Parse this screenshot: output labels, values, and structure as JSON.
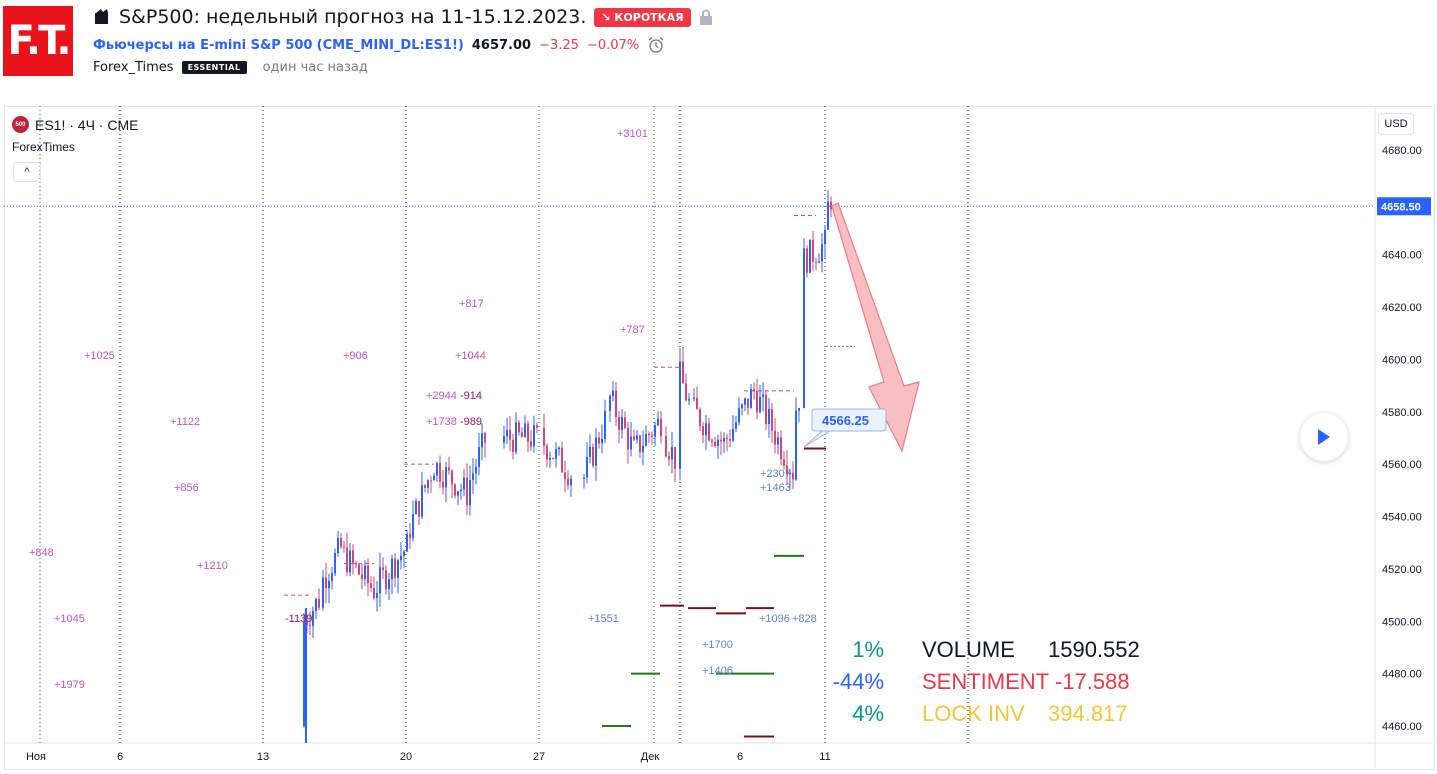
{
  "header": {
    "logo_text": "F.T.",
    "title": "S&P500: недельный прогноз на 11-15.12.2023.",
    "badge": "↘ КОРОТКАЯ",
    "symbol_name": "Фьючерсы на E-mini S&P 500",
    "symbol_code": "(CME_MINI_DL:ES1!)",
    "last_price": "4657.00",
    "change": "−3.25",
    "change_pct": "−0.07%",
    "author": "Forex_Times",
    "author_badge": "ESSENTIAL",
    "published": "один час назад"
  },
  "legend": {
    "symbol": "ES1! · 4Ч · CME",
    "symbol_icon": "500",
    "indicator": "ForexTimes",
    "collapse": "^"
  },
  "axis": {
    "currency": "USD",
    "current_price_label": "4658.50",
    "target_label": "4566.25"
  },
  "stats": {
    "rows": [
      {
        "pct": "1%",
        "label": "VOLUME",
        "value": "1590.552",
        "pct_color": "#089981",
        "label_color": "#131722",
        "value_color": "#131722"
      },
      {
        "pct": "-44%",
        "label": "SENTIMENT",
        "value": "-17.588",
        "pct_color": "#2962ff",
        "label_color": "#f23645",
        "value_color": "#f23645"
      },
      {
        "pct": "4%",
        "label": "LOCK INV",
        "value": "394.817",
        "pct_color": "#089981",
        "label_color": "#f5c533",
        "value_color": "#f5c533"
      }
    ]
  },
  "chart_data": {
    "type": "candlestick",
    "ylim": [
      4452,
      4688
    ],
    "y_ticks": [
      "4680.00",
      "4660.00",
      "4640.00",
      "4620.00",
      "4600.00",
      "4580.00",
      "4560.00",
      "4540.00",
      "4520.00",
      "4500.00",
      "4480.00",
      "4460.00"
    ],
    "x_ticks": [
      "Ноя",
      "6",
      "13",
      "20",
      "27",
      "Дек",
      "6",
      "11"
    ],
    "current_price": 4658.5,
    "forecast_target": 4566.25,
    "annotations": [
      {
        "text": "+3101"
      },
      {
        "text": "+817"
      },
      {
        "text": "+787"
      },
      {
        "text": "+1025"
      },
      {
        "text": "+906"
      },
      {
        "text": "+1044"
      },
      {
        "text": "+2944"
      },
      {
        "text": "-914"
      },
      {
        "text": "+1122"
      },
      {
        "text": "+1738"
      },
      {
        "text": "-989"
      },
      {
        "text": "+856"
      },
      {
        "text": "+2307"
      },
      {
        "text": "+1463"
      },
      {
        "text": "+848"
      },
      {
        "text": "+1210"
      },
      {
        "text": "+1045"
      },
      {
        "text": "-1139"
      },
      {
        "text": "+1551"
      },
      {
        "text": "+1096"
      },
      {
        "text": "+828"
      },
      {
        "text": "+1700"
      },
      {
        "text": "+1406"
      },
      {
        "text": "+1979"
      }
    ]
  },
  "colors": {
    "up": "#2962ff",
    "down": "#d6457a",
    "annotation": "#c853c8",
    "annotation_blue": "#5b84d6",
    "arrow": "#f7a8ae"
  }
}
